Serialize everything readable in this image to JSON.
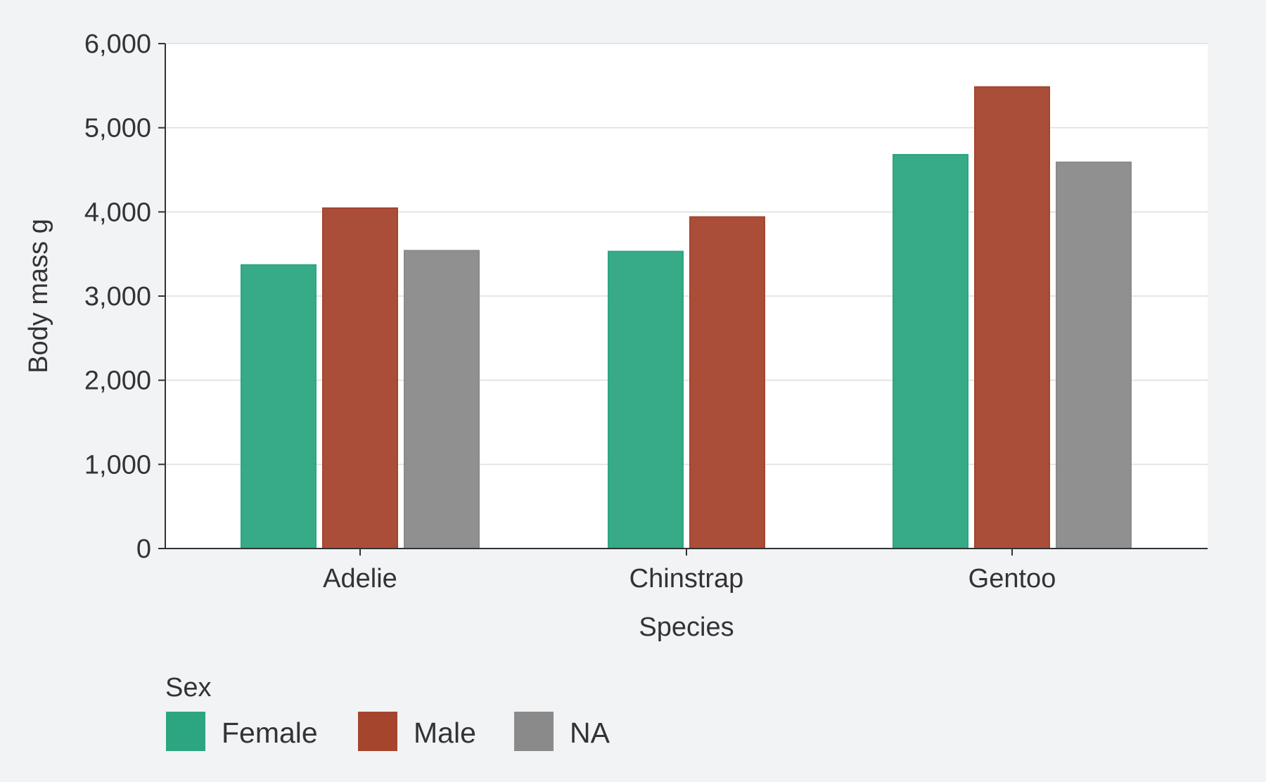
{
  "chart_data": {
    "type": "bar",
    "title": "",
    "xlabel": "Species",
    "ylabel": "Body mass g",
    "ylim": [
      0,
      6000
    ],
    "yticks": [
      0,
      1000,
      2000,
      3000,
      4000,
      5000,
      6000
    ],
    "categories": [
      "Adelie",
      "Chinstrap",
      "Gentoo"
    ],
    "series": [
      {
        "name": "Female",
        "color": "#2ca581",
        "values": [
          3370,
          3530,
          4680
        ]
      },
      {
        "name": "Male",
        "color": "#a5452e",
        "values": [
          4045,
          3940,
          5485
        ]
      },
      {
        "name": "NA",
        "color": "#8a8a8a",
        "values": [
          3540,
          null,
          4590
        ]
      }
    ],
    "grid": true,
    "legend": {
      "title": "Sex",
      "placement": "bottom-left"
    }
  }
}
